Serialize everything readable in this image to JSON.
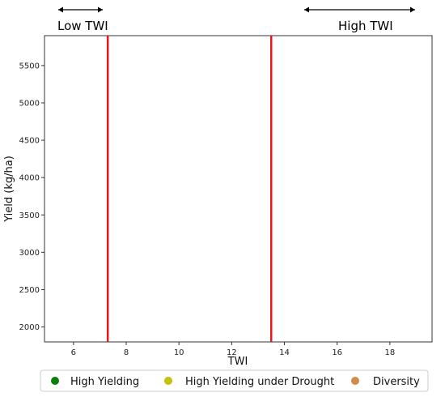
{
  "chart_data": {
    "type": "scatter",
    "title": "",
    "xlabel": "TWI",
    "ylabel": "Yield (kg/ha)",
    "xlim": [
      4.9,
      19.6
    ],
    "ylim": [
      1800,
      5900
    ],
    "xticks": [
      6,
      8,
      10,
      12,
      14,
      16,
      18
    ],
    "yticks": [
      2000,
      2500,
      3000,
      3500,
      4000,
      4500,
      5000,
      5500
    ],
    "grid": false,
    "legend_position": "bottom",
    "vlines": [
      {
        "x": 7.3,
        "color": "#e8191e"
      },
      {
        "x": 13.5,
        "color": "#e8191e"
      }
    ],
    "annotations": [
      {
        "text": "Low TWI",
        "position": "top-left",
        "arrow": true
      },
      {
        "text": "High TWI",
        "position": "top-right",
        "arrow": true
      }
    ],
    "series": [
      {
        "name": "High Yielding",
        "color": "#078107",
        "points": []
      },
      {
        "name": "High Yielding under Drought",
        "color": "#c4c100",
        "points": []
      },
      {
        "name": "Diversity",
        "color": "#d2894a",
        "points": []
      }
    ]
  }
}
